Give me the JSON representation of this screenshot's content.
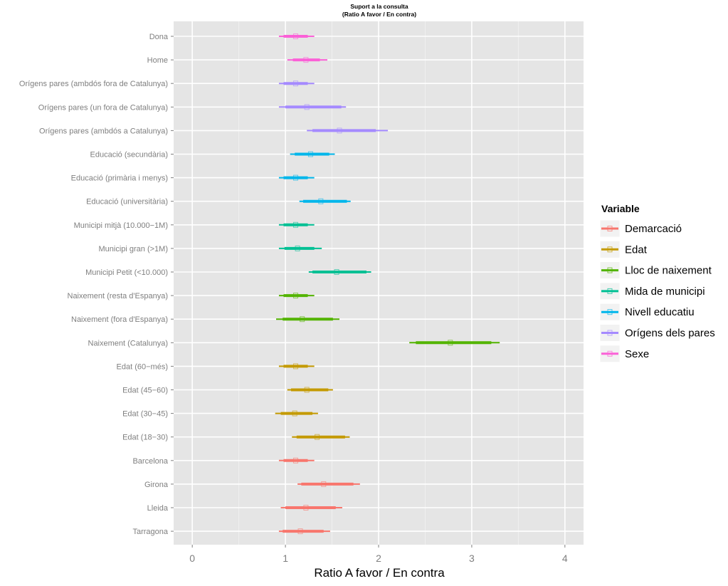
{
  "chart_data": {
    "type": "interval",
    "title": "Suport a la consulta",
    "subtitle": "(Ratio A favor / En contra)",
    "xlabel": "Ratio A favor / En contra",
    "ylabel": "",
    "xlim": [
      -0.2,
      4.2
    ],
    "x_ticks": [
      0,
      1,
      2,
      3,
      4
    ],
    "grid": true,
    "legend": {
      "title": "Variable",
      "position": "right",
      "entries": [
        {
          "name": "Demarcació",
          "color": "#F8766D"
        },
        {
          "name": "Edat",
          "color": "#C49A00"
        },
        {
          "name": "Lloc de naixement",
          "color": "#53B400"
        },
        {
          "name": "Mida de municipi",
          "color": "#00C094"
        },
        {
          "name": "Nivell educatiu",
          "color": "#00B6EB"
        },
        {
          "name": "Orígens dels pares",
          "color": "#A58AFF"
        },
        {
          "name": "Sexe",
          "color": "#FB61D7"
        }
      ]
    },
    "rows": [
      {
        "label": "Dona",
        "group": "Sexe",
        "estimate": 1.11,
        "inner": [
          0.98,
          1.24
        ],
        "outer": [
          0.93,
          1.31
        ]
      },
      {
        "label": "Home",
        "group": "Sexe",
        "estimate": 1.22,
        "inner": [
          1.08,
          1.37
        ],
        "outer": [
          1.02,
          1.45
        ]
      },
      {
        "label": "Orígens pares (ambdós fora de Catalunya)",
        "group": "Orígens dels pares",
        "estimate": 1.11,
        "inner": [
          0.98,
          1.24
        ],
        "outer": [
          0.93,
          1.31
        ]
      },
      {
        "label": "Orígens pares (un fora de Catalunya)",
        "group": "Orígens dels pares",
        "estimate": 1.23,
        "inner": [
          1.0,
          1.6
        ],
        "outer": [
          0.93,
          1.65
        ]
      },
      {
        "label": "Orígens pares (ambdós a Catalunya)",
        "group": "Orígens dels pares",
        "estimate": 1.58,
        "inner": [
          1.29,
          1.97
        ],
        "outer": [
          1.23,
          2.1
        ]
      },
      {
        "label": "Educació (secundària)",
        "group": "Nivell educatiu",
        "estimate": 1.27,
        "inner": [
          1.1,
          1.47
        ],
        "outer": [
          1.05,
          1.53
        ]
      },
      {
        "label": "Educació (primària i menys)",
        "group": "Nivell educatiu",
        "estimate": 1.11,
        "inner": [
          0.98,
          1.24
        ],
        "outer": [
          0.93,
          1.31
        ]
      },
      {
        "label": "Educació (universitària)",
        "group": "Nivell educatiu",
        "estimate": 1.38,
        "inner": [
          1.19,
          1.66
        ],
        "outer": [
          1.15,
          1.7
        ]
      },
      {
        "label": "Municipi mitjà (10.000−1M)",
        "group": "Mida de municipi",
        "estimate": 1.11,
        "inner": [
          0.98,
          1.24
        ],
        "outer": [
          0.93,
          1.31
        ]
      },
      {
        "label": "Municipi gran (>1M)",
        "group": "Mida de municipi",
        "estimate": 1.13,
        "inner": [
          0.99,
          1.31
        ],
        "outer": [
          0.93,
          1.39
        ]
      },
      {
        "label": "Municipi Petit (<10.000)",
        "group": "Mida de municipi",
        "estimate": 1.55,
        "inner": [
          1.29,
          1.87
        ],
        "outer": [
          1.25,
          1.92
        ]
      },
      {
        "label": "Naixement (resta d'Espanya)",
        "group": "Lloc de naixement",
        "estimate": 1.11,
        "inner": [
          0.98,
          1.24
        ],
        "outer": [
          0.93,
          1.31
        ]
      },
      {
        "label": "Naixement (fora d'Espanya)",
        "group": "Lloc de naixement",
        "estimate": 1.18,
        "inner": [
          0.97,
          1.51
        ],
        "outer": [
          0.9,
          1.58
        ]
      },
      {
        "label": "Naixement (Catalunya)",
        "group": "Lloc de naixement",
        "estimate": 2.77,
        "inner": [
          2.4,
          3.21
        ],
        "outer": [
          2.33,
          3.3
        ]
      },
      {
        "label": "Edat (60−més)",
        "group": "Edat",
        "estimate": 1.11,
        "inner": [
          0.98,
          1.24
        ],
        "outer": [
          0.93,
          1.31
        ]
      },
      {
        "label": "Edat (45−60)",
        "group": "Edat",
        "estimate": 1.23,
        "inner": [
          1.06,
          1.46
        ],
        "outer": [
          1.02,
          1.51
        ]
      },
      {
        "label": "Edat (30−45)",
        "group": "Edat",
        "estimate": 1.1,
        "inner": [
          0.95,
          1.29
        ],
        "outer": [
          0.89,
          1.35
        ]
      },
      {
        "label": "Edat (18−30)",
        "group": "Edat",
        "estimate": 1.34,
        "inner": [
          1.12,
          1.64
        ],
        "outer": [
          1.07,
          1.69
        ]
      },
      {
        "label": "Barcelona",
        "group": "Demarcació",
        "estimate": 1.11,
        "inner": [
          0.98,
          1.24
        ],
        "outer": [
          0.93,
          1.31
        ]
      },
      {
        "label": "Girona",
        "group": "Demarcació",
        "estimate": 1.41,
        "inner": [
          1.17,
          1.73
        ],
        "outer": [
          1.13,
          1.8
        ]
      },
      {
        "label": "Lleida",
        "group": "Demarcació",
        "estimate": 1.22,
        "inner": [
          1.0,
          1.54
        ],
        "outer": [
          0.95,
          1.61
        ]
      },
      {
        "label": "Tarragona",
        "group": "Demarcació",
        "estimate": 1.16,
        "inner": [
          0.97,
          1.41
        ],
        "outer": [
          0.93,
          1.48
        ]
      }
    ]
  }
}
